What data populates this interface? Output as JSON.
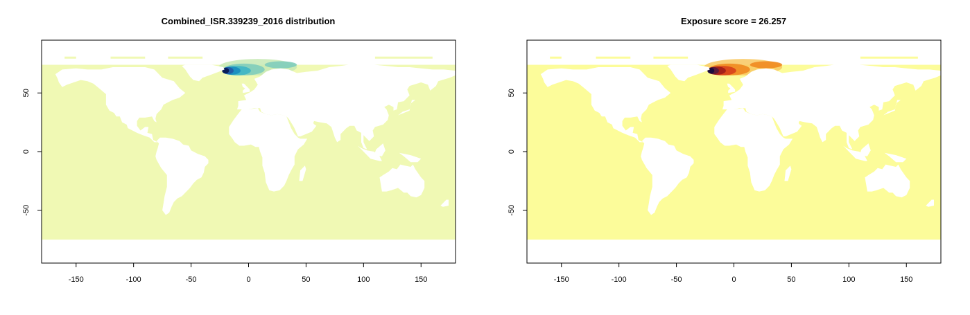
{
  "panels": [
    {
      "title": "Combined_ISR.339239_2016 distribution",
      "ocean_color": "#f0f9b4",
      "hotspot_palette": [
        "#081d58",
        "#225ea8",
        "#1d91c0",
        "#41b6c4",
        "#7fcdbb",
        "#c7e9b4"
      ]
    },
    {
      "title": "Exposure score = 26.257",
      "ocean_color": "#fcfc9a",
      "hotspot_palette": [
        "#1a0b3d",
        "#5a1a3a",
        "#a4201a",
        "#d8461a",
        "#f08a20",
        "#f8c860"
      ]
    }
  ],
  "chart_data": [
    {
      "type": "heatmap",
      "title": "Combined_ISR.339239_2016 distribution",
      "xlim": [
        -180,
        180
      ],
      "ylim": [
        -95,
        95
      ],
      "x_ticks": [
        -150,
        -100,
        -50,
        0,
        50,
        100,
        150
      ],
      "y_ticks": [
        50,
        0,
        -50
      ],
      "x_tick_labels": [
        "-150",
        "-100",
        "-50",
        "0",
        "50",
        "100",
        "150"
      ],
      "y_tick_labels": [
        "50",
        "0",
        "-50"
      ],
      "grid": false,
      "peak_region": {
        "lon": [
          -25,
          40
        ],
        "lat": [
          62,
          75
        ]
      }
    },
    {
      "type": "heatmap",
      "title": "Exposure score = 26.257",
      "xlim": [
        -180,
        180
      ],
      "ylim": [
        -95,
        95
      ],
      "x_ticks": [
        -150,
        -100,
        -50,
        0,
        50,
        100,
        150
      ],
      "y_ticks": [
        50,
        0,
        -50
      ],
      "x_tick_labels": [
        "-150",
        "-100",
        "-50",
        "0",
        "50",
        "100",
        "150"
      ],
      "y_tick_labels": [
        "50",
        "0",
        "-50"
      ],
      "grid": false,
      "peak_region": {
        "lon": [
          -25,
          40
        ],
        "lat": [
          62,
          75
        ]
      }
    }
  ]
}
